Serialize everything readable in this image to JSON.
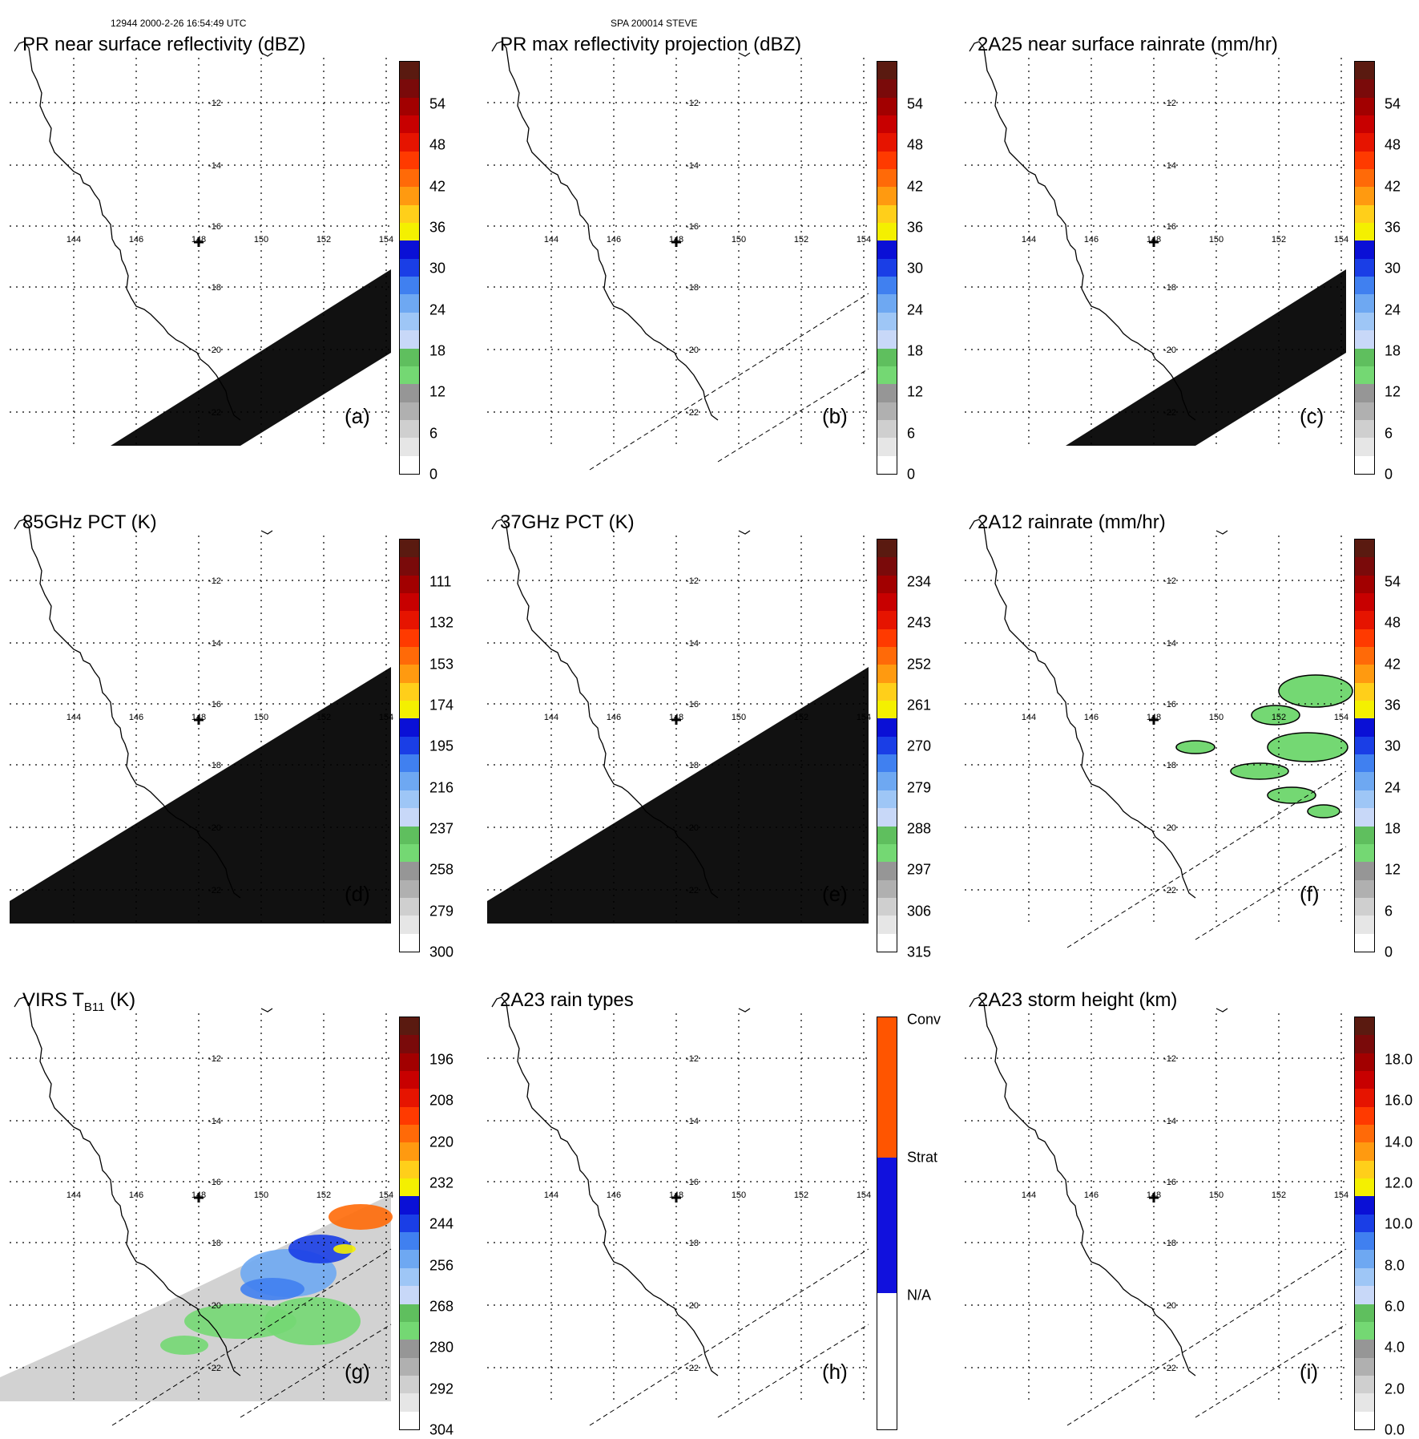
{
  "header": {
    "left": "12944 2000-2-26 16:54:49 UTC",
    "center": "SPA 200014 STEVE"
  },
  "geo": {
    "lon_labels": [
      "144",
      "146",
      "148",
      "150",
      "152",
      "154"
    ],
    "lat_labels": [
      "-12",
      "-14",
      "-16",
      "-18",
      "-20",
      "-22"
    ]
  },
  "colors": {
    "dbz_scale": [
      "#ffffff",
      "#e6e6e6",
      "#cfcfcf",
      "#b0b0b0",
      "#969696",
      "#74d873",
      "#5fbf5e",
      "#c8d8f8",
      "#9ec6f6",
      "#6ea8f2",
      "#4080f0",
      "#1a3ee6",
      "#0a10d6",
      "#f4f000",
      "#ffcf1a",
      "#ff9a10",
      "#ff6a08",
      "#ff3a00",
      "#e61400",
      "#c80000",
      "#a20000",
      "#7a0a0a",
      "#5a1a10"
    ],
    "rain_types": [
      "#ffffff",
      "#1111dd",
      "#ff5500"
    ]
  },
  "panels": [
    {
      "id": "a",
      "title": "PR near surface reflectivity (dBZ)",
      "label": "(a)",
      "ticks": [
        "54",
        "48",
        "42",
        "36",
        "30",
        "24",
        "18",
        "12",
        "6",
        "0"
      ],
      "swath": "pr",
      "scale": "dbz"
    },
    {
      "id": "b",
      "title": "PR max reflectivity projection (dBZ)",
      "label": "(b)",
      "ticks": [
        "54",
        "48",
        "42",
        "36",
        "30",
        "24",
        "18",
        "12",
        "6",
        "0"
      ],
      "swath": "dash",
      "scale": "dbz"
    },
    {
      "id": "c",
      "title": "2A25 near surface rainrate (mm/hr)",
      "label": "(c)",
      "ticks": [
        "54",
        "48",
        "42",
        "36",
        "30",
        "24",
        "18",
        "12",
        "6",
        "0"
      ],
      "swath": "pr",
      "scale": "rain"
    },
    {
      "id": "d",
      "title": "85GHz PCT (K)",
      "label": "(d)",
      "ticks": [
        "111",
        "132",
        "153",
        "174",
        "195",
        "216",
        "237",
        "258",
        "279",
        "300"
      ],
      "swath": "tmi",
      "scale": "dbz"
    },
    {
      "id": "e",
      "title": "37GHz PCT (K)",
      "label": "(e)",
      "ticks": [
        "234",
        "243",
        "252",
        "261",
        "270",
        "279",
        "288",
        "297",
        "306",
        "315"
      ],
      "swath": "tmi",
      "scale": "dbz"
    },
    {
      "id": "f",
      "title": "2A12 rainrate (mm/hr)",
      "label": "(f)",
      "ticks": [
        "54",
        "48",
        "42",
        "36",
        "30",
        "24",
        "18",
        "12",
        "6",
        "0"
      ],
      "swath": "rain",
      "scale": "rain"
    },
    {
      "id": "g",
      "title_main": "VIRS T",
      "title_sub": "B11",
      "title_end": " (K)",
      "label": "(g)",
      "ticks": [
        "196",
        "208",
        "220",
        "232",
        "244",
        "256",
        "268",
        "280",
        "292",
        "304"
      ],
      "swath": "virs",
      "scale": "dbz"
    },
    {
      "id": "h",
      "title": "2A23 rain types",
      "label": "(h)",
      "ticks": [
        "Conv",
        "Strat",
        "N/A"
      ],
      "swath": "dash",
      "scale": "types"
    },
    {
      "id": "i",
      "title": "2A23 storm height (km)",
      "label": "(i)",
      "ticks": [
        "18.0",
        "16.0",
        "14.0",
        "12.0",
        "10.0",
        "8.0",
        "6.0",
        "4.0",
        "2.0",
        "0.0"
      ],
      "swath": "dash",
      "scale": "height"
    }
  ]
}
